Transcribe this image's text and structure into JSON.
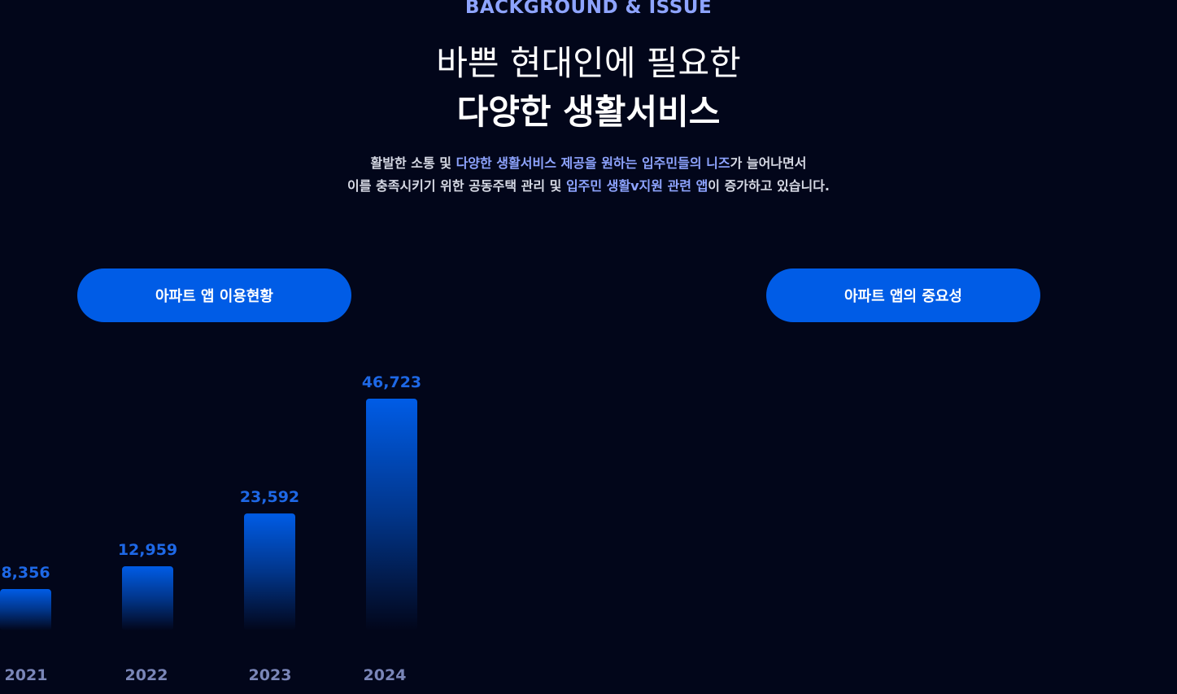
{
  "colors": {
    "background": "#02061a",
    "accent_blue": "#005ce6",
    "eyebrow": "#8ea4ff",
    "value_label": "#1e68e6",
    "year_label": "#7a86b8"
  },
  "header": {
    "eyebrow": "BACKGROUND & ISSUE",
    "headline_line1": "바쁜 현대인에 필요한",
    "headline_line2": "다양한 생활서비스"
  },
  "description": {
    "line1": {
      "before": "활발한 소통 및 ",
      "highlight": "다양한 생활서비스 제공을 원하는 입주민들의 니즈",
      "after": "가 늘어나면서"
    },
    "line2": {
      "before": "이를 충족시키기 위한 공동주택 관리 및 ",
      "highlight": "입주민 생활v지원 관련 앱",
      "after": "이 증가하고 있습니다."
    }
  },
  "buttons": {
    "left_label": "아파트 앱 이용현황",
    "right_label": "아파트 앱의 중요성"
  },
  "chart_data": {
    "type": "bar",
    "categories": [
      "2021",
      "2022",
      "2023",
      "2024"
    ],
    "values": [
      8356,
      12959,
      23592,
      46723
    ],
    "value_labels": [
      "8,356",
      "12,959",
      "23,592",
      "46,723"
    ],
    "title": "",
    "xlabel": "",
    "ylabel": "",
    "grid": false,
    "legend": "none"
  }
}
